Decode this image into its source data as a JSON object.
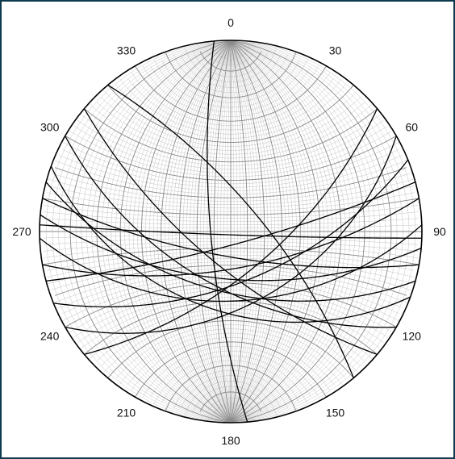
{
  "stereonet": {
    "azimuth_labels": [
      "0",
      "30",
      "60",
      "90",
      "120",
      "150",
      "180",
      "210",
      "240",
      "270",
      "300",
      "330"
    ],
    "azimuth_values": [
      0,
      30,
      60,
      90,
      120,
      150,
      180,
      210,
      240,
      270,
      300,
      330
    ]
  },
  "colors": {
    "frame_border": "#0f3a4e",
    "primitive_circle": "#000000",
    "major_grid": "#8a8a8a",
    "minor_grid": "#c4c4c4",
    "great_circles": "#000000"
  },
  "chart_data": {
    "type": "stereonet",
    "projection": "equal-angle",
    "grid": true,
    "grid_major_interval_deg": 10,
    "grid_minor_interval_deg": 2,
    "planes": [
      {
        "strike": 175,
        "dip": 78
      },
      {
        "strike": 50,
        "dip": 65
      },
      {
        "strike": 320,
        "dip": 72
      },
      {
        "strike": 95,
        "dip": 62
      },
      {
        "strike": 105,
        "dip": 55
      },
      {
        "strike": 80,
        "dip": 68
      },
      {
        "strike": 88,
        "dip": 50
      },
      {
        "strike": 100,
        "dip": 75
      },
      {
        "strike": 120,
        "dip": 58
      },
      {
        "strike": 60,
        "dip": 48
      },
      {
        "strike": 75,
        "dip": 82
      },
      {
        "strike": 110,
        "dip": 45
      },
      {
        "strike": 92,
        "dip": 88
      },
      {
        "strike": 130,
        "dip": 70
      },
      {
        "strike": 68,
        "dip": 60
      }
    ]
  }
}
